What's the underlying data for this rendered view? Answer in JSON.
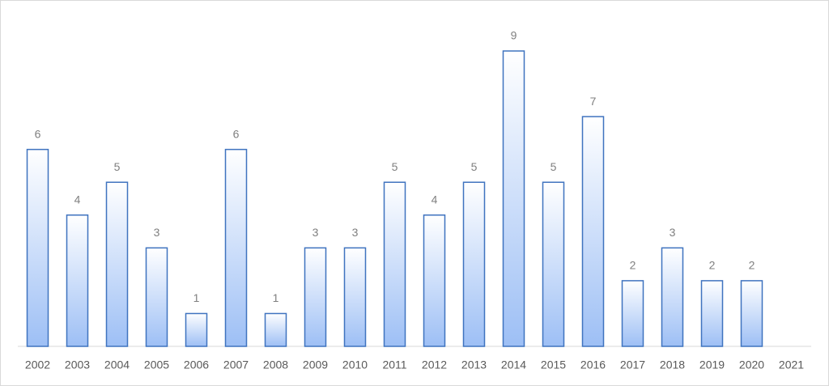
{
  "chart_data": {
    "type": "bar",
    "categories": [
      "2002",
      "2003",
      "2004",
      "2005",
      "2006",
      "2007",
      "2008",
      "2009",
      "2010",
      "2011",
      "2012",
      "2013",
      "2014",
      "2015",
      "2016",
      "2017",
      "2018",
      "2019",
      "2020",
      "2021"
    ],
    "values": [
      6,
      4,
      5,
      3,
      1,
      6,
      1,
      3,
      3,
      5,
      4,
      5,
      9,
      5,
      7,
      2,
      3,
      2,
      2,
      null
    ],
    "color": "#3f73bf"
  }
}
